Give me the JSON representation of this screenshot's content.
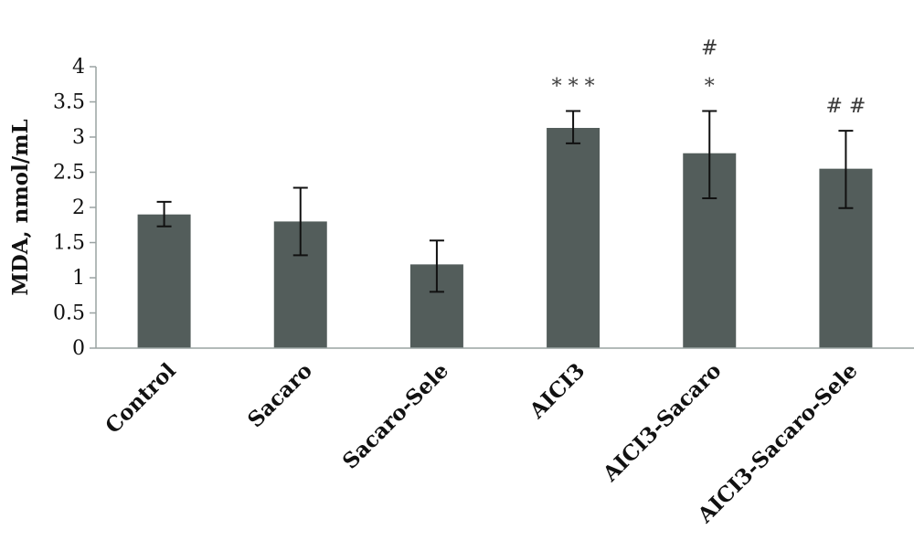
{
  "chart_data": {
    "type": "bar",
    "categories": [
      "Control",
      "Sacaro",
      "Sacaro-Sele",
      "AICI3",
      "AICI3-Sacaro",
      "AICI3-Sacaro-Sele"
    ],
    "values": [
      1.9,
      1.8,
      1.19,
      3.13,
      2.77,
      2.55
    ],
    "error_upper": [
      2.08,
      2.28,
      1.53,
      3.37,
      3.37,
      3.09
    ],
    "error_lower": [
      1.73,
      1.32,
      0.8,
      2.91,
      2.13,
      1.99
    ],
    "annotations": [
      {
        "category_index": 3,
        "lines": [
          "* * *"
        ]
      },
      {
        "category_index": 4,
        "lines": [
          "#",
          "*"
        ]
      },
      {
        "category_index": 5,
        "lines": [
          "# #"
        ]
      }
    ],
    "ylabel": "MDA, nmol/mL",
    "ylim": [
      0,
      4
    ],
    "yticks": [
      "0",
      "0.5",
      "1",
      "1.5",
      "2",
      "2.5",
      "3",
      "3.5",
      "4"
    ],
    "bar_color": "#535d5b",
    "grid": false
  }
}
